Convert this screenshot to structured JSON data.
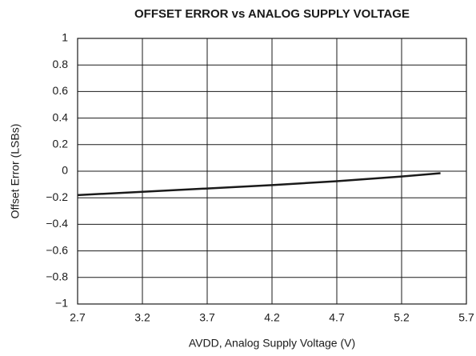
{
  "chart_data": {
    "type": "line",
    "title": "OFFSET ERROR vs ANALOG SUPPLY VOLTAGE",
    "xlabel": "AVDD, Analog Supply Voltage (V)",
    "ylabel": "Offset Error (LSBs)",
    "x": [
      2.7,
      3.2,
      3.7,
      4.2,
      4.7,
      5.2,
      5.5
    ],
    "series": [
      {
        "name": "Offset Error",
        "color": "#1a1a1a",
        "values": [
          -0.18,
          -0.155,
          -0.13,
          -0.105,
          -0.075,
          -0.04,
          -0.015
        ]
      }
    ],
    "xlim": [
      2.7,
      5.7
    ],
    "xticks": [
      2.7,
      3.2,
      3.7,
      4.2,
      4.7,
      5.2,
      5.7
    ],
    "ylim": [
      -1,
      1
    ],
    "yticks": [
      {
        "value": -1,
        "label": "−1"
      },
      {
        "value": -0.8,
        "label": "−0.8"
      },
      {
        "value": -0.6,
        "label": "−0.6"
      },
      {
        "value": -0.4,
        "label": "−0.4"
      },
      {
        "value": -0.2,
        "label": "−0.2"
      },
      0,
      0.2,
      0.4,
      0.6,
      0.8,
      1
    ],
    "grid": true
  }
}
